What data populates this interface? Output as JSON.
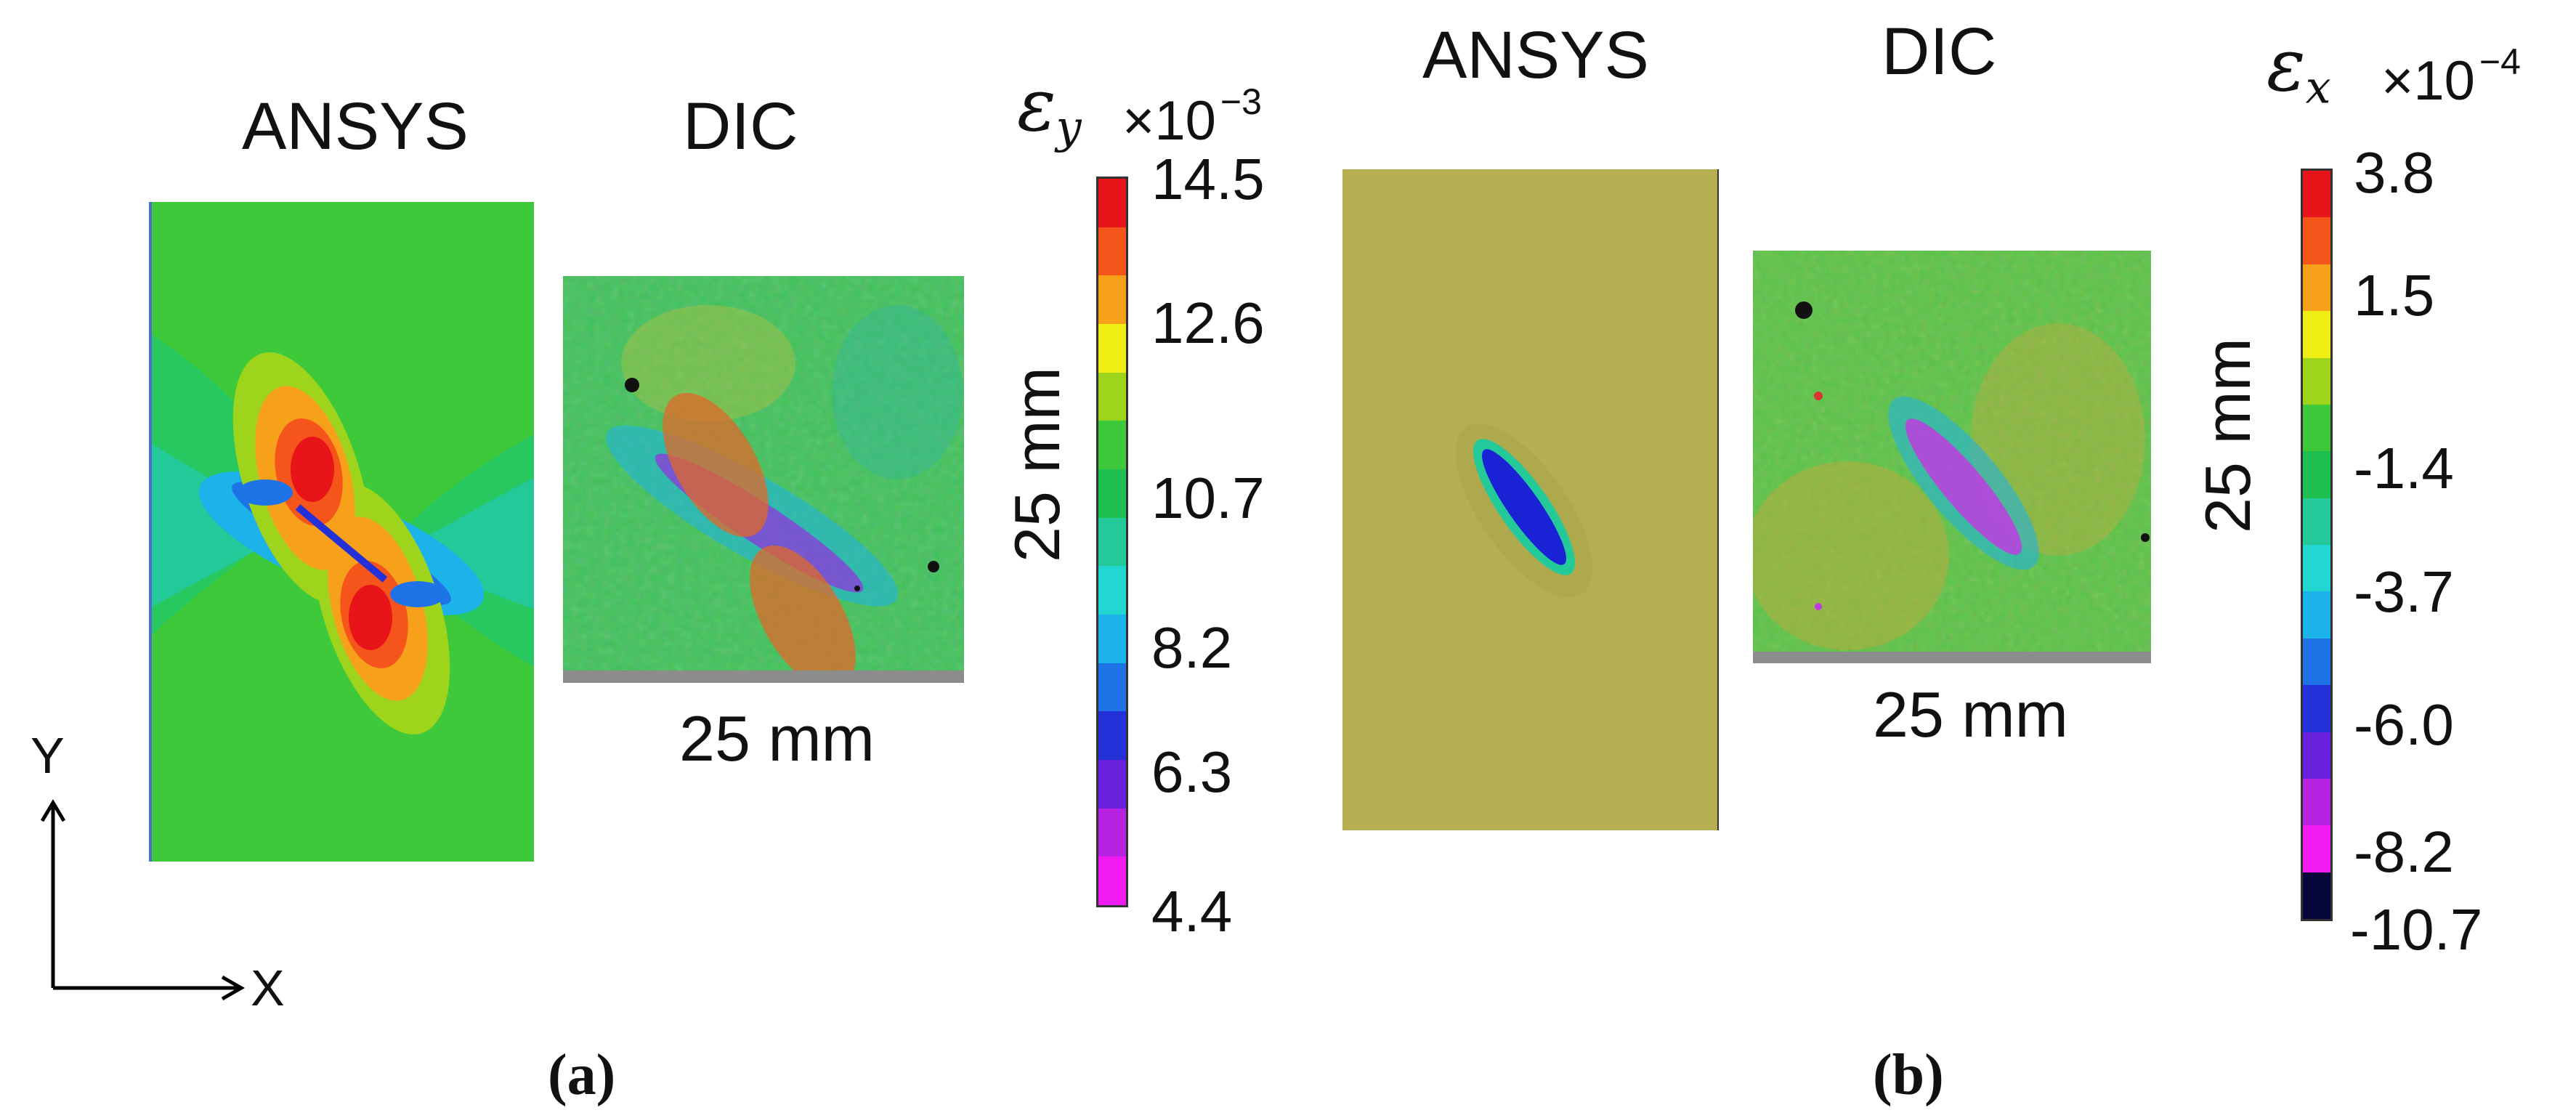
{
  "panel_a": {
    "ansys_label": "ANSYS",
    "dic_label": "DIC",
    "symbol": "ε",
    "symbol_sub": "y",
    "multiplier": "×10",
    "exponent": "−3",
    "width_label": "25 mm",
    "height_label": "25 mm",
    "tick_labels": [
      "14.5",
      "12.6",
      "10.7",
      "8.2",
      "6.3",
      "4.4"
    ],
    "colors": [
      "#e8141a",
      "#f5541a",
      "#f7a11a",
      "#f0ee14",
      "#9fd41c",
      "#3ec93a",
      "#1fbf52",
      "#24c99a",
      "#22d6d2",
      "#1cb2ea",
      "#1e73e6",
      "#2430d8",
      "#6a1fdc",
      "#b722e0",
      "#f01bf2"
    ],
    "caption": "(a)"
  },
  "panel_b": {
    "ansys_label": "ANSYS",
    "dic_label": "DIC",
    "symbol": "ε",
    "symbol_sub": "x",
    "multiplier": "×10",
    "exponent": "−4",
    "width_label": "25 mm",
    "height_label": "25 mm",
    "tick_labels": [
      "3.8",
      "1.5",
      "-1.4",
      "-3.7",
      "-6.0",
      "-8.2",
      "-10.7"
    ],
    "colors": [
      "#e8141a",
      "#f5541a",
      "#f7a11a",
      "#f0ee14",
      "#9fd41c",
      "#3ec93a",
      "#1fbf52",
      "#24c99a",
      "#22d6d2",
      "#1cb2ea",
      "#1e73e6",
      "#2430d8",
      "#6a1fdc",
      "#b722e0",
      "#f01bf2",
      "#06063d"
    ],
    "caption": "(b)"
  },
  "axes": {
    "x_label": "X",
    "y_label": "Y"
  }
}
